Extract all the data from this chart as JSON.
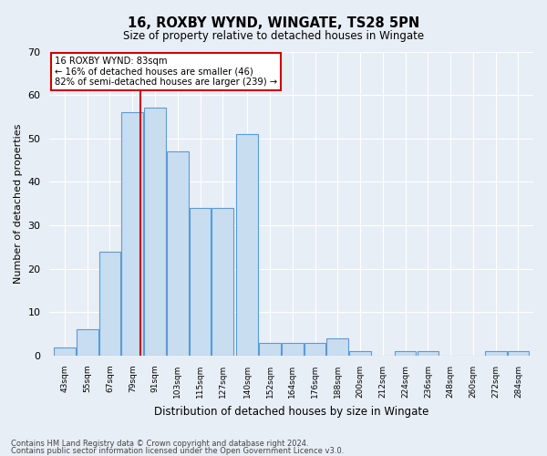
{
  "title": "16, ROXBY WYND, WINGATE, TS28 5PN",
  "subtitle": "Size of property relative to detached houses in Wingate",
  "xlabel": "Distribution of detached houses by size in Wingate",
  "ylabel": "Number of detached properties",
  "footer1": "Contains HM Land Registry data © Crown copyright and database right 2024.",
  "footer2": "Contains public sector information licensed under the Open Government Licence v3.0.",
  "annotation_title": "16 ROXBY WYND: 83sqm",
  "annotation_line1": "← 16% of detached houses are smaller (46)",
  "annotation_line2": "82% of semi-detached houses are larger (239) →",
  "property_size": 83,
  "bar_labels": [
    "43sqm",
    "55sqm",
    "67sqm",
    "79sqm",
    "91sqm",
    "103sqm",
    "115sqm",
    "127sqm",
    "140sqm",
    "152sqm",
    "164sqm",
    "176sqm",
    "188sqm",
    "200sqm",
    "212sqm",
    "224sqm",
    "236sqm",
    "248sqm",
    "260sqm",
    "272sqm",
    "284sqm"
  ],
  "bar_values": [
    2,
    6,
    24,
    56,
    57,
    47,
    34,
    34,
    51,
    3,
    3,
    3,
    4,
    1,
    0,
    1,
    1,
    0,
    0,
    1,
    1
  ],
  "bar_centers": [
    43,
    55,
    67,
    79,
    91,
    103,
    115,
    127,
    140,
    152,
    164,
    176,
    188,
    200,
    212,
    224,
    236,
    248,
    260,
    272,
    284
  ],
  "bar_width": 11.5,
  "bar_color": "#c9ddf0",
  "bar_edge_color": "#5b9bd5",
  "vline_color": "#cc0000",
  "annotation_box_color": "#ffffff",
  "annotation_box_edge": "#cc0000",
  "bg_color": "#e8eef6",
  "grid_color": "#ffffff",
  "ylim": [
    0,
    70
  ],
  "yticks": [
    0,
    10,
    20,
    30,
    40,
    50,
    60,
    70
  ]
}
